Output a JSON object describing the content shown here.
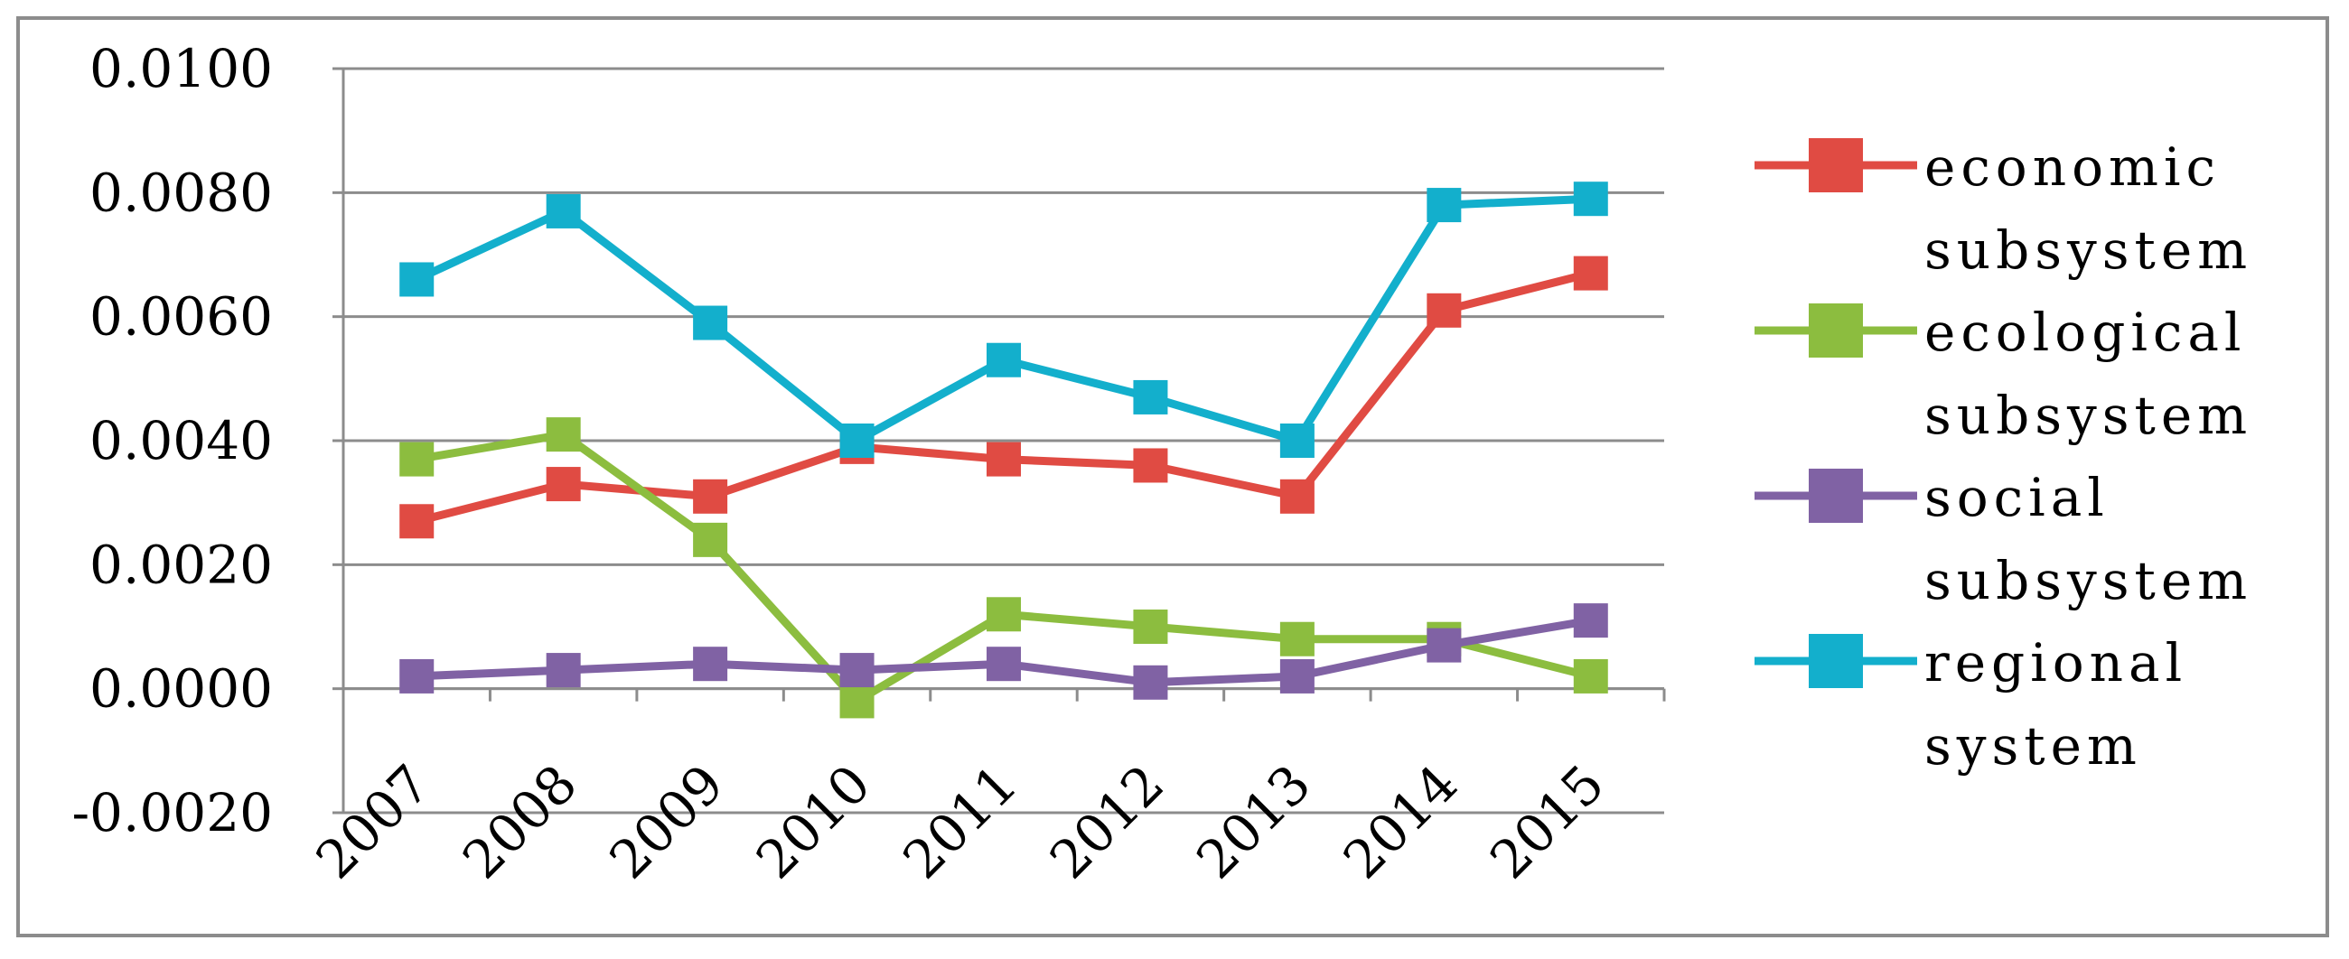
{
  "chart_data": {
    "type": "line",
    "title": "",
    "xlabel": "",
    "ylabel": "",
    "x": [
      "2007",
      "2008",
      "2009",
      "2010",
      "2011",
      "2012",
      "2013",
      "2014",
      "2015"
    ],
    "y_ticks": [
      "0.0100",
      "0.0080",
      "0.0060",
      "0.0040",
      "0.0020",
      "0.0000",
      "-0.0020"
    ],
    "ylim": [
      -0.002,
      0.01
    ],
    "grid": true,
    "legend_position": "right",
    "series": [
      {
        "name": "economic subsystem",
        "legend_lines": [
          "economic",
          "subsystem"
        ],
        "color": "#e04b43",
        "values": [
          0.0027,
          0.0033,
          0.0031,
          0.0039,
          0.0037,
          0.0036,
          0.0031,
          0.0061,
          0.0067
        ]
      },
      {
        "name": "ecological subsystem",
        "legend_lines": [
          "ecological",
          "subsystem"
        ],
        "color": "#8cbd3f",
        "values": [
          0.0037,
          0.0041,
          0.0024,
          -0.0002,
          0.0012,
          0.001,
          0.0008,
          0.0008,
          0.0002
        ]
      },
      {
        "name": "social subsystem",
        "legend_lines": [
          "social",
          "subsystem"
        ],
        "color": "#8062a4",
        "values": [
          0.0002,
          0.0003,
          0.0004,
          0.0003,
          0.0004,
          0.0001,
          0.0002,
          0.0007,
          0.0011
        ]
      },
      {
        "name": "regional system",
        "legend_lines": [
          "regional",
          "system"
        ],
        "color": "#13afcc",
        "values": [
          0.0066,
          0.0077,
          0.0059,
          0.004,
          0.0053,
          0.0047,
          0.004,
          0.0078,
          0.0079
        ]
      }
    ]
  }
}
